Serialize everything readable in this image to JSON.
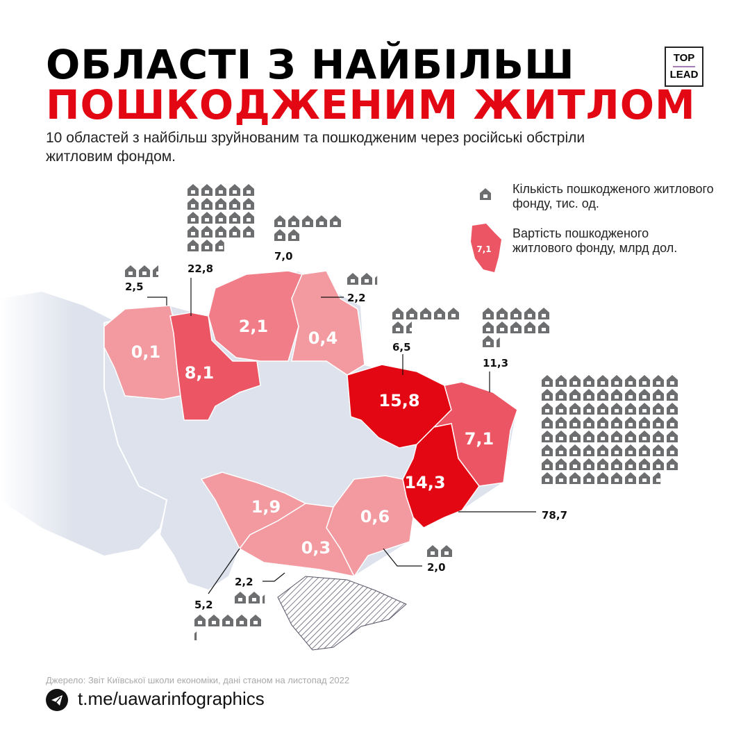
{
  "header": {
    "title_line1": "ОБЛАСТІ З НАЙБІЛЬШ",
    "title_line2": "ПОШКОДЖЕНИМ ЖИТЛОМ",
    "subtitle": "10 областей з найбільш зруйнованим та пошкодженим через російські обстріли житловим фондом.",
    "logo_top": "TOP",
    "logo_bottom": "LEAD"
  },
  "legend": {
    "houses_label": "Кількість пошкодженого житлового фонду, тис. од.",
    "cost_label": "Вартість пошкодженого житлового фонду, млрд дол.",
    "cost_example": "7,1",
    "house_icon": "house-icon"
  },
  "colors": {
    "title_red": "#e30613",
    "house_gray": "#6d6e70",
    "other_regions": "#dde2ec",
    "cost_high": "#e30613",
    "cost_mid": "#ec5563",
    "cost_low": "#f07d87",
    "cost_min": "#f39aa1"
  },
  "chart_data": {
    "type": "map",
    "units": {
      "houses": "тис. од.",
      "cost": "млрд дол."
    },
    "regions": [
      {
        "cost": "0,1",
        "houses": "2,5"
      },
      {
        "cost": "8,1",
        "houses": "22,8"
      },
      {
        "cost": "2,1",
        "houses": "7,0"
      },
      {
        "cost": "0,4",
        "houses": "2,2"
      },
      {
        "cost": "15,8",
        "houses": "6,5"
      },
      {
        "cost": "7,1",
        "houses": "11,3"
      },
      {
        "cost": "14,3",
        "houses": "78,7"
      },
      {
        "cost": "0,6",
        "houses": "2,0"
      },
      {
        "cost": "0,3",
        "houses": "2,2"
      },
      {
        "cost": "1,9",
        "houses": "5,2"
      }
    ]
  },
  "footer": {
    "source": "Джерело: Звіт Київської школи економіки, дані станом на листопад 2022",
    "link": "t.me/uawarinfographics",
    "link_icon": "telegram-icon"
  }
}
